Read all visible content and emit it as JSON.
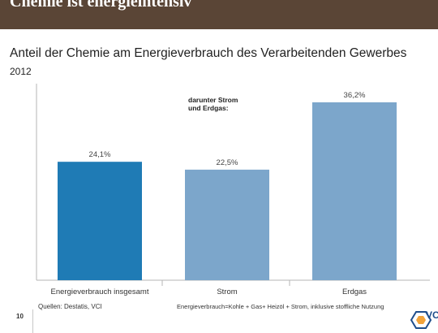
{
  "header": {
    "title": "Chemie ist energieintensiv"
  },
  "chart_data": {
    "type": "bar",
    "title": "Anteil der Chemie am Energieverbrauch des Verarbeitenden Gewerbes",
    "subtitle": "2012",
    "categories": [
      "Energieverbrauch insgesamt",
      "Strom",
      "Erdgas"
    ],
    "values": [
      24.1,
      22.5,
      36.2
    ],
    "value_labels": [
      "24,1%",
      "22,5%",
      "36,2%"
    ],
    "bar_colors": [
      "#1f7bb5",
      "#7ca6cb",
      "#7ca6cb"
    ],
    "annotation": [
      "darunter Strom",
      "und Erdgas:"
    ],
    "ylim": [
      0,
      40
    ],
    "grid": false,
    "legend": "none"
  },
  "footer": {
    "source": "Quellen: Destatis, VCI",
    "footnote": "Energieverbrauch=Kohle + Gas+ Heizöl + Strom, inklusive stoffliche Nutzung",
    "page_number": "10",
    "logo_text": "VCI"
  }
}
